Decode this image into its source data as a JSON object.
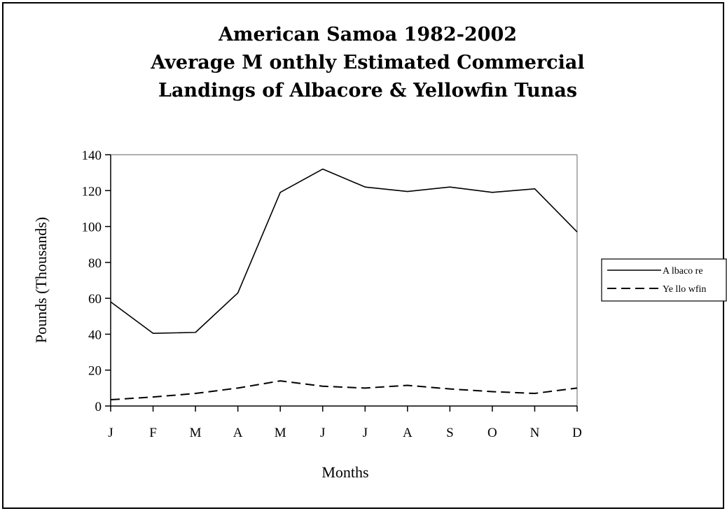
{
  "chart_data": {
    "type": "line",
    "title_lines": [
      "American Samoa 1982-2002",
      "Average M onthly Estimated Commercial",
      "Landings of Albacore & Yellowfin Tunas"
    ],
    "xlabel": "Months",
    "ylabel": "Pounds (Thousands)",
    "categories": [
      "J",
      "F",
      "M",
      "A",
      "M",
      "J",
      "J",
      "A",
      "S",
      "O",
      "N",
      "D"
    ],
    "ylim": [
      0,
      140
    ],
    "yticks": [
      0,
      20,
      40,
      60,
      80,
      100,
      120,
      140
    ],
    "grid": false,
    "legend_position": "right",
    "series": [
      {
        "name": "A lbaco re",
        "line_style": "solid",
        "color": "#000000",
        "values": [
          58,
          40.5,
          41,
          63,
          119,
          132,
          122,
          119.5,
          122,
          119,
          121,
          97
        ]
      },
      {
        "name": "Ye llo wfin",
        "line_style": "dashed",
        "color": "#000000",
        "values": [
          3.5,
          5,
          7,
          10,
          14,
          11,
          10,
          11.5,
          9.5,
          8,
          7,
          10
        ]
      }
    ]
  }
}
